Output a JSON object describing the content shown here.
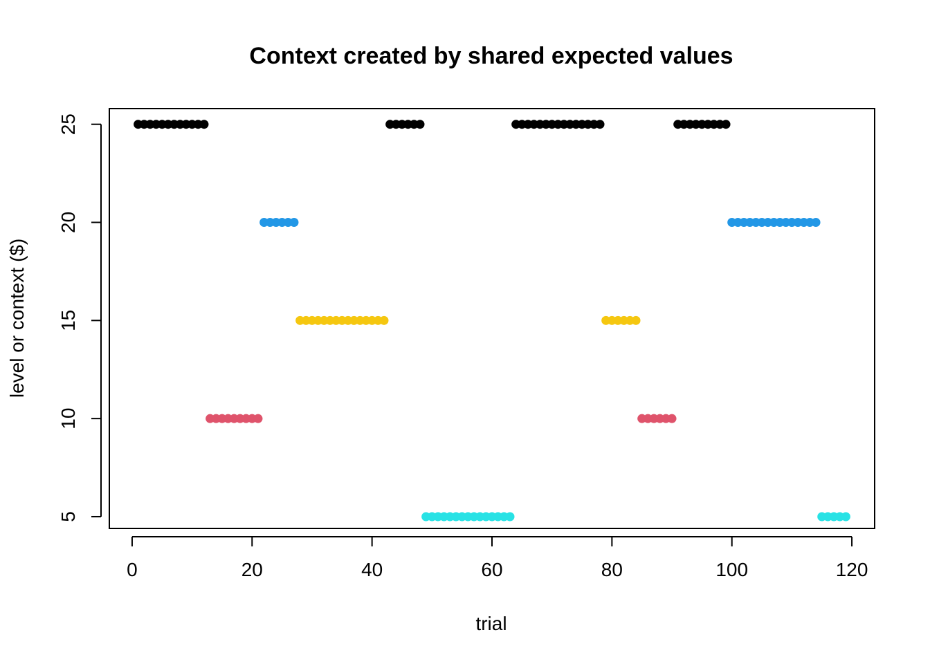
{
  "chart_data": {
    "type": "scatter",
    "title": "Context created by shared expected values",
    "xlabel": "trial",
    "ylabel": "level or context ($)",
    "xlim": [
      -3.8,
      123.8
    ],
    "ylim": [
      4.4,
      25.8
    ],
    "xticks": [
      0,
      20,
      40,
      60,
      80,
      100,
      120
    ],
    "yticks": [
      5,
      10,
      15,
      20,
      25
    ],
    "grid": false,
    "colors": {
      "5": "#28E2E5",
      "10": "#DF536B",
      "15": "#F5C710",
      "20": "#2297E6",
      "25": "#000000"
    },
    "segments": [
      {
        "y": 25,
        "x_start": 1,
        "x_end": 12
      },
      {
        "y": 10,
        "x_start": 13,
        "x_end": 21
      },
      {
        "y": 20,
        "x_start": 22,
        "x_end": 27
      },
      {
        "y": 15,
        "x_start": 28,
        "x_end": 42
      },
      {
        "y": 25,
        "x_start": 43,
        "x_end": 48
      },
      {
        "y": 5,
        "x_start": 49,
        "x_end": 63
      },
      {
        "y": 25,
        "x_start": 64,
        "x_end": 78
      },
      {
        "y": 15,
        "x_start": 79,
        "x_end": 84
      },
      {
        "y": 10,
        "x_start": 85,
        "x_end": 90
      },
      {
        "y": 25,
        "x_start": 91,
        "x_end": 99
      },
      {
        "y": 20,
        "x_start": 100,
        "x_end": 114
      },
      {
        "y": 5,
        "x_start": 115,
        "x_end": 119
      }
    ]
  }
}
